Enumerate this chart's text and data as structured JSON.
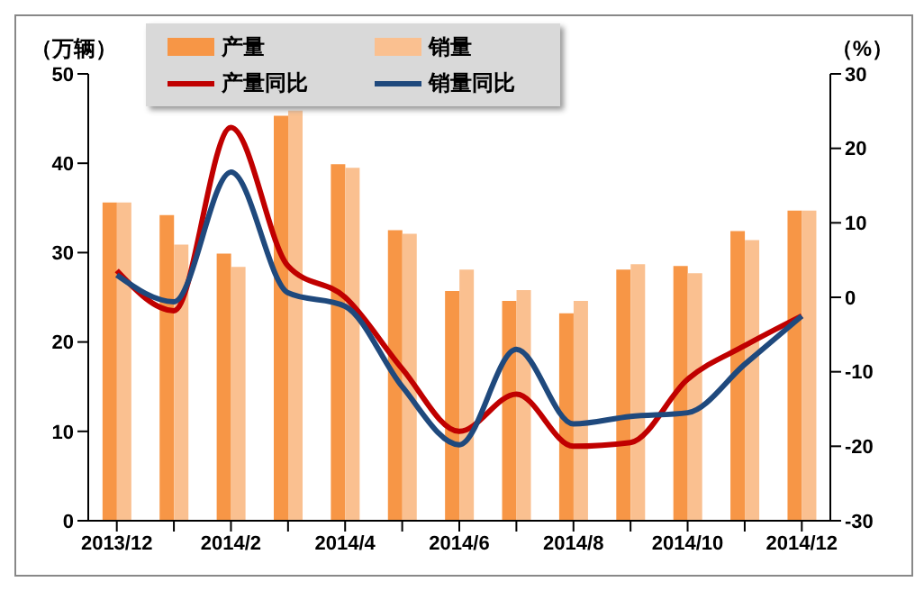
{
  "chart_data": {
    "type": "bar",
    "ylabel": "（万辆）",
    "y2label": "（%）",
    "categories": [
      "2013/12",
      null,
      "2014/2",
      null,
      "2014/4",
      null,
      "2014/6",
      null,
      "2014/8",
      null,
      "2014/10",
      null,
      "2014/12"
    ],
    "series": [
      {
        "name": "产量",
        "color": "#f79646",
        "values": [
          35.6,
          34.2,
          29.9,
          45.3,
          39.9,
          32.5,
          25.7,
          24.6,
          23.2,
          28.1,
          28.5,
          32.4,
          34.7
        ]
      },
      {
        "name": "销量",
        "color": "#fac090",
        "values": [
          35.6,
          30.9,
          28.4,
          45.9,
          39.5,
          32.1,
          28.1,
          25.8,
          24.6,
          28.7,
          27.7,
          31.4,
          34.7
        ]
      },
      {
        "name": "产量同比",
        "type": "line",
        "axis": "y2",
        "color": "#c00000",
        "values": [
          3.6,
          -1.8,
          22.8,
          4.2,
          0,
          -9.6,
          -18,
          -13,
          -20,
          -19.5,
          -11,
          -6.5,
          -2.5
        ]
      },
      {
        "name": "销量同比",
        "type": "line",
        "axis": "y2",
        "color": "#1f497d",
        "values": [
          3,
          -0.6,
          16.8,
          0.6,
          -1.2,
          -12,
          -19.8,
          -7,
          -17,
          -16,
          -15.5,
          -9,
          -2.5
        ]
      }
    ],
    "ylim": [
      0,
      50
    ],
    "yticks": [
      0,
      10,
      20,
      30,
      40,
      50
    ],
    "y2lim": [
      -30,
      30
    ],
    "y2ticks": [
      -30,
      -20,
      -10,
      0,
      10,
      20,
      30
    ],
    "grid": false,
    "legend": "top",
    "marker": "none"
  }
}
